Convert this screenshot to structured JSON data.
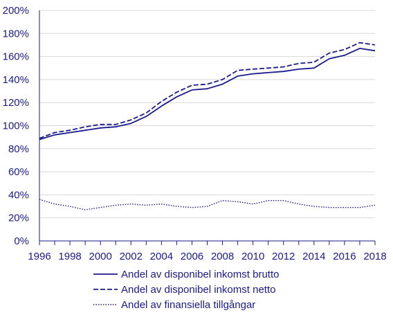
{
  "chart_data": {
    "type": "line",
    "title": "",
    "xlabel": "",
    "ylabel": "",
    "x": [
      1996,
      1997,
      1998,
      1999,
      2000,
      2001,
      2002,
      2003,
      2004,
      2005,
      2006,
      2007,
      2008,
      2009,
      2010,
      2011,
      2012,
      2013,
      2014,
      2015,
      2016,
      2017,
      2018
    ],
    "xlim": [
      1996,
      2018
    ],
    "ylim": [
      0,
      200
    ],
    "x_ticks": [
      "1996",
      "1998",
      "2000",
      "2002",
      "2004",
      "2006",
      "2008",
      "2010",
      "2012",
      "2014",
      "2016",
      "2018"
    ],
    "y_ticks": [
      "0%",
      "20%",
      "40%",
      "60%",
      "80%",
      "100%",
      "120%",
      "140%",
      "160%",
      "180%",
      "200%"
    ],
    "grid": "horizontal",
    "legend_position": "bottom",
    "color": "#1a1a8c",
    "series": [
      {
        "name": "Andel av disponibel inkomst brutto",
        "style": "solid",
        "values": [
          88,
          92,
          94,
          96,
          98,
          99,
          102,
          108,
          117,
          125,
          131,
          132,
          136,
          143,
          145,
          146,
          147,
          149,
          150,
          158,
          161,
          167,
          165
        ]
      },
      {
        "name": "Andel av disponibel inkomst netto",
        "style": "dashed",
        "values": [
          89,
          94,
          96,
          99,
          101,
          101,
          105,
          111,
          121,
          129,
          135,
          136,
          140,
          148,
          149,
          150,
          151,
          154,
          155,
          163,
          166,
          172,
          170
        ]
      },
      {
        "name": "Andel av finansiella tillgångar",
        "style": "dotted",
        "values": [
          36,
          32,
          30,
          27,
          29,
          31,
          32,
          31,
          32,
          30,
          29,
          30,
          35,
          34,
          32,
          35,
          35,
          32,
          30,
          29,
          29,
          29,
          31
        ]
      }
    ]
  }
}
